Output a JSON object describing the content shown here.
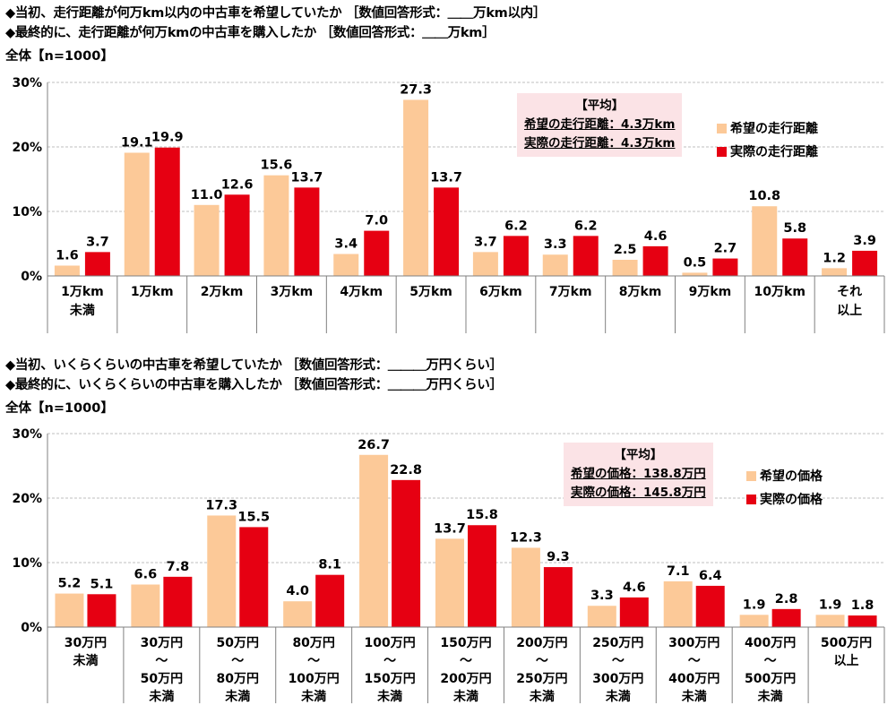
{
  "colors": {
    "hope": "#fcc998",
    "actual": "#e60012",
    "grid": "#bfbfbf",
    "axis": "#808080"
  },
  "chart_data": [
    {
      "type": "bar",
      "questions": [
        "◆当初、走行距離が何万km以内の中古車を希望していたか ［数値回答形式：＿＿万km以内］",
        "◆最終的に、走行距離が何万kmの中古車を購入したか ［数値回答形式：＿＿万km］"
      ],
      "base": "全体【n=1000】",
      "categories": [
        [
          "1万km",
          "未満"
        ],
        [
          "1万km"
        ],
        [
          "2万km"
        ],
        [
          "3万km"
        ],
        [
          "4万km"
        ],
        [
          "5万km"
        ],
        [
          "6万km"
        ],
        [
          "7万km"
        ],
        [
          "8万km"
        ],
        [
          "9万km"
        ],
        [
          "10万km"
        ],
        [
          "それ",
          "以上"
        ]
      ],
      "series": [
        {
          "name": "希望の走行距離",
          "values": [
            1.6,
            19.1,
            11.0,
            15.6,
            3.4,
            27.3,
            3.7,
            3.3,
            2.5,
            0.5,
            10.8,
            1.2
          ]
        },
        {
          "name": "実際の走行距離",
          "values": [
            3.7,
            19.9,
            12.6,
            13.7,
            7.0,
            13.7,
            6.2,
            6.2,
            4.6,
            2.7,
            5.8,
            3.9
          ]
        }
      ],
      "ylim": [
        0,
        30
      ],
      "yticks": [
        "0%",
        "10%",
        "20%",
        "30%"
      ],
      "average": {
        "title": "【平均】",
        "lines": [
          "希望の走行距離：4.3万km",
          "実際の走行距離：4.3万km"
        ]
      }
    },
    {
      "type": "bar",
      "questions": [
        "◆当初、いくらくらいの中古車を希望していたか ［数値回答形式：＿＿＿万円くらい］",
        "◆最終的に、いくらくらいの中古車を購入したか ［数値回答形式：＿＿＿万円くらい］"
      ],
      "base": "全体【n=1000】",
      "categories": [
        [
          "30万円",
          "未満"
        ],
        [
          "30万円",
          "～",
          "50万円",
          "未満"
        ],
        [
          "50万円",
          "～",
          "80万円",
          "未満"
        ],
        [
          "80万円",
          "～",
          "100万円",
          "未満"
        ],
        [
          "100万円",
          "～",
          "150万円",
          "未満"
        ],
        [
          "150万円",
          "～",
          "200万円",
          "未満"
        ],
        [
          "200万円",
          "～",
          "250万円",
          "未満"
        ],
        [
          "250万円",
          "～",
          "300万円",
          "未満"
        ],
        [
          "300万円",
          "～",
          "400万円",
          "未満"
        ],
        [
          "400万円",
          "～",
          "500万円",
          "未満"
        ],
        [
          "500万円",
          "以上"
        ]
      ],
      "series": [
        {
          "name": "希望の価格",
          "values": [
            5.2,
            6.6,
            17.3,
            4.0,
            26.7,
            13.7,
            12.3,
            3.3,
            7.1,
            1.9,
            1.9
          ]
        },
        {
          "name": "実際の価格",
          "values": [
            5.1,
            7.8,
            15.5,
            8.1,
            22.8,
            15.8,
            9.3,
            4.6,
            6.4,
            2.8,
            1.8
          ]
        }
      ],
      "ylim": [
        0,
        30
      ],
      "yticks": [
        "0%",
        "10%",
        "20%",
        "30%"
      ],
      "average": {
        "title": "【平均】",
        "lines": [
          "希望の価格：138.8万円",
          "実際の価格：145.8万円"
        ]
      }
    }
  ]
}
